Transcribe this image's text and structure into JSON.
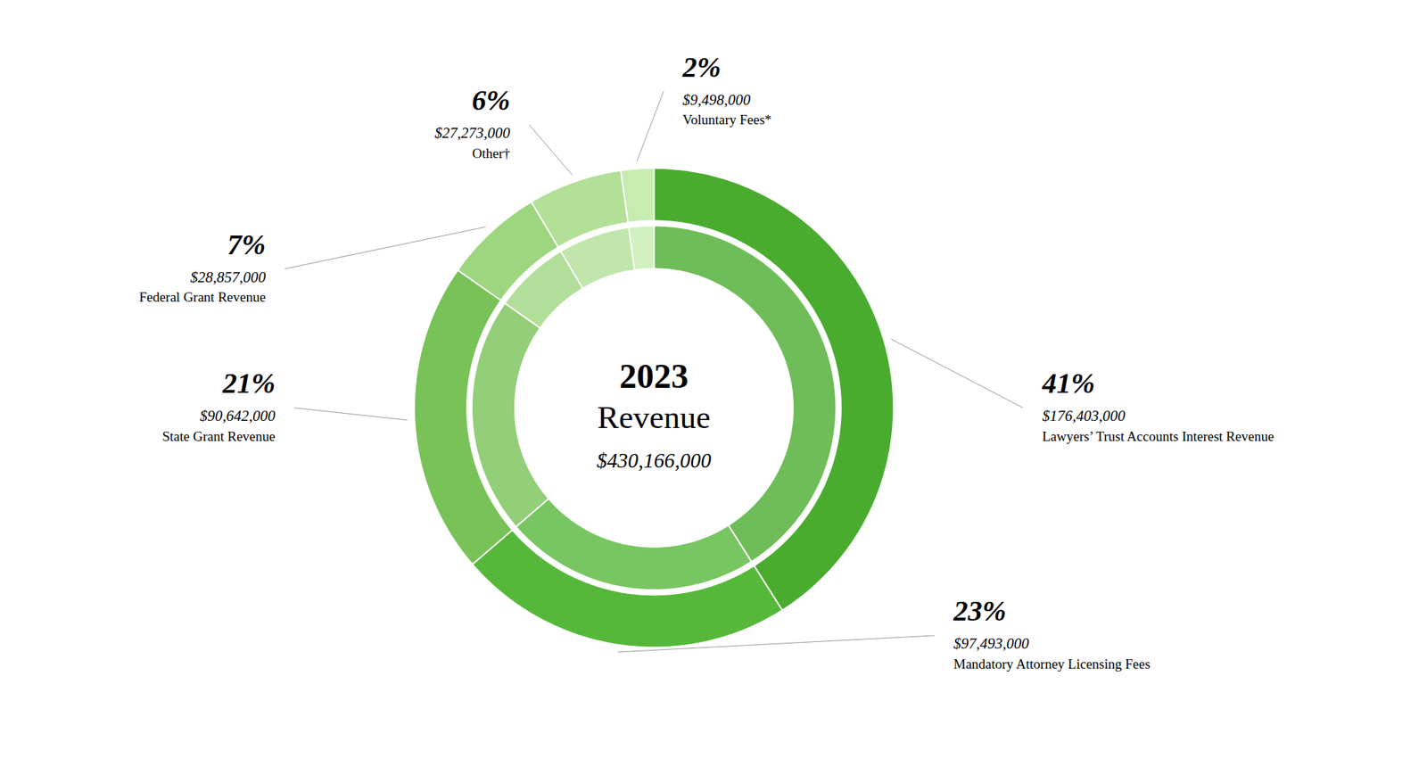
{
  "chart_data": {
    "type": "pie",
    "title": "2023",
    "subtitle": "Revenue",
    "total": 430166000,
    "total_label": "$430,166,000",
    "categories": [
      "Lawyers’ Trust Accounts Interest Revenue",
      "Mandatory Attorney Licensing Fees",
      "State Grant Revenue",
      "Federal Grant Revenue",
      "Other†",
      "Voluntary Fees*"
    ],
    "values": [
      176403000,
      97493000,
      90642000,
      28857000,
      27273000,
      9498000
    ],
    "value_labels": [
      "$176,403,000",
      "$97,493,000",
      "$90,642,000",
      "$28,857,000",
      "$27,273,000",
      "$9,498,000"
    ],
    "shares": [
      41,
      23,
      21,
      7,
      6,
      2
    ],
    "share_labels": [
      "41%",
      "23%",
      "21%",
      "7%",
      "6%",
      "2%"
    ],
    "colors": [
      "#4aac2e",
      "#56b83a",
      "#78c258",
      "#9dd67e",
      "#b2e096",
      "#c6ecb0"
    ],
    "data_labels": true
  }
}
